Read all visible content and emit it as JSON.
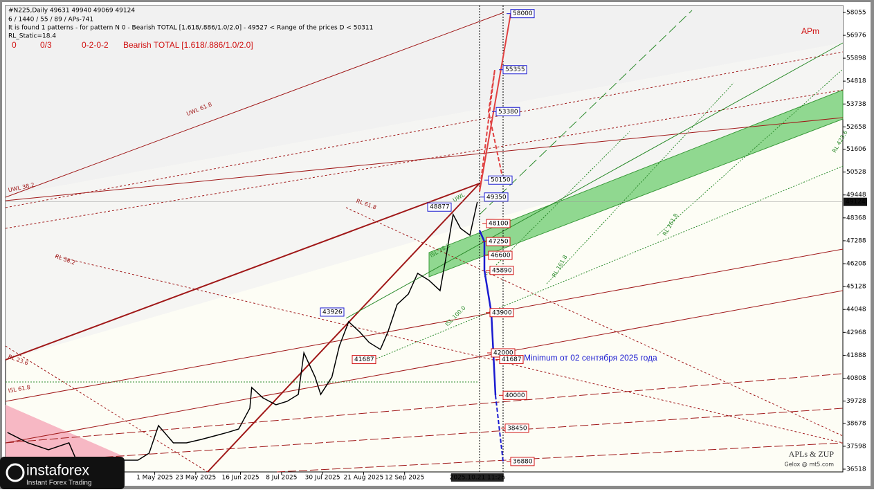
{
  "chart_data": {
    "type": "line",
    "header": {
      "symbol_line": "#N225,Daily  49631 49940 49069 49124",
      "settings_line": "6 / 1440 / 55 / 89 / APs-741",
      "pattern_line": "It is found 1 patterns  -  for pattern N 0 - Bearish TOTAL [1.618/.886/1.0/2.0] - 49527 < Range of the prices D < 50311",
      "static_line": "RL_Static=18.4",
      "status": [
        "0",
        "0/3",
        "0-2-0-2",
        "Bearish TOTAL [1.618/.886/1.0/2.0]"
      ]
    },
    "corner_label": "APm",
    "credit": "APLs & ZUP",
    "credit_sub": "Gelox @ mt5.com",
    "annotation": "Minimum от 02 сентября 2025 года",
    "logo": "instaforex",
    "logo_sub": "Instant Forex Trading",
    "line_labels": [
      "UWL 61.8",
      "UWL 38.2",
      "RL 61.8",
      "RL 38.2",
      "RL 23.6",
      "ISL 61.8",
      "RL 423.6",
      "RL 261.8",
      "RL 161.8",
      "ISL 38.2",
      "ISL 100.0",
      "UWL"
    ],
    "series": [
      {
        "name": "#N225",
        "color": "#000000",
        "x": [
          42,
          53,
          64,
          75,
          79,
          112,
          118,
          123,
          131,
          138,
          146,
          153,
          160,
          166,
          172,
          173,
          179,
          186,
          192,
          198,
          201,
          207,
          210,
          216,
          220,
          225,
          231,
          236,
          242,
          246,
          251,
          257,
          262,
          268,
          274,
          277,
          281,
          285,
          290,
          294
        ],
        "values": [
          38249,
          37759,
          37433,
          37759,
          36943,
          36943,
          37270,
          38575,
          37759,
          37759,
          37922,
          38085,
          38249,
          38412,
          39391,
          40370,
          39880,
          39554,
          39717,
          40043,
          42001,
          40859,
          40043,
          40859,
          42327,
          43469,
          42980,
          42490,
          42164,
          42980,
          44285,
          44775,
          45753,
          45427,
          44938,
          46406,
          48527,
          47874,
          47548,
          49124
        ]
      }
    ],
    "upper_levels": [
      58000,
      55355,
      53380,
      50150,
      49350
    ],
    "lower_levels": [
      48100,
      47250,
      46600,
      45890,
      43900,
      42000,
      41687,
      40000,
      38450,
      36880
    ],
    "pivots": [
      48877,
      43926,
      41687
    ],
    "xlim": [
      41,
      490
    ],
    "ylim": [
      36387,
      58381
    ],
    "yticks": [
      58055,
      56976,
      55898,
      54818,
      53738,
      52658,
      51606,
      50528,
      49448,
      48368,
      47288,
      46208,
      45128,
      44048,
      42968,
      41888,
      40808,
      39728,
      38678,
      37598,
      36518
    ],
    "xticks": [
      {
        "value": 121,
        "label": "1 May 2025"
      },
      {
        "value": 143,
        "label": "23 May 2025"
      },
      {
        "value": 167,
        "label": "16 Jun 2025"
      },
      {
        "value": 189,
        "label": "8 Jul 2025"
      },
      {
        "value": 211,
        "label": "30 Jul 2025"
      },
      {
        "value": 233,
        "label": "21 Aug 2025"
      },
      {
        "value": 255,
        "label": "12 Sep 2025"
      }
    ],
    "cursor": {
      "value": 294,
      "label": "2025.10.21 11:26"
    }
  }
}
